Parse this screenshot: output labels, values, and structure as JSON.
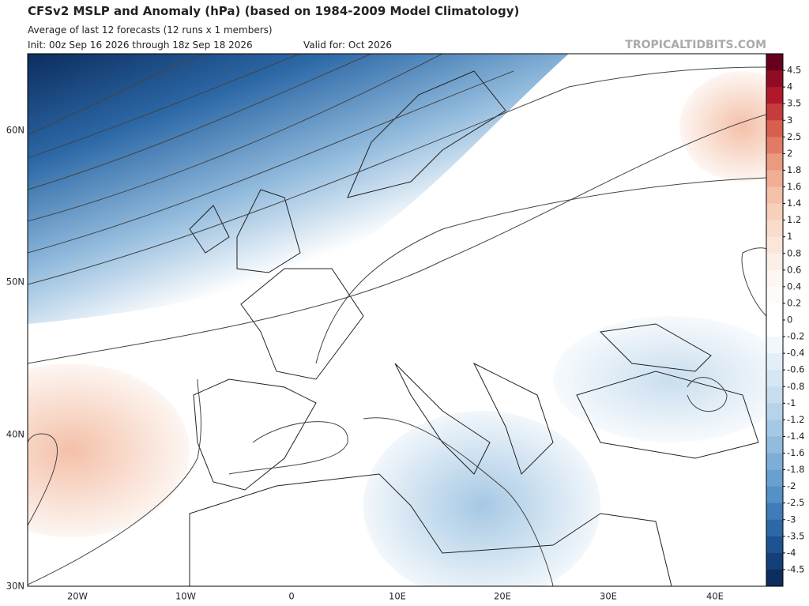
{
  "header": {
    "title": "CFSv2 MSLP and Anomaly (hPa) (based on 1984-2009 Model Climatology)",
    "subtitle": "Average of last 12 forecasts (12 runs x 1 members)",
    "init": "Init: 00z Sep 16 2026 through 18z Sep 18 2026",
    "valid": "Valid for: Oct 2026",
    "watermark": "TROPICALTIDBITS.COM"
  },
  "map": {
    "lat_labels": [
      "60N",
      "50N",
      "40N",
      "30N"
    ],
    "lon_labels": [
      "20W",
      "10W",
      "0",
      "10E",
      "20E",
      "30E",
      "40E"
    ]
  },
  "colorbar": {
    "levels": [
      4.5,
      4,
      3.5,
      3,
      2.5,
      2,
      1.8,
      1.6,
      1.4,
      1.2,
      1,
      0.8,
      0.6,
      0.4,
      0.2,
      0,
      -0.2,
      -0.4,
      -0.6,
      -0.8,
      -1,
      -1.2,
      -1.4,
      -1.6,
      -1.8,
      -2,
      -2.5,
      -3,
      -3.5,
      -4,
      -4.5
    ],
    "colors": [
      "#67001f",
      "#8e0d25",
      "#b2182b",
      "#c43c3c",
      "#d6604d",
      "#e07b66",
      "#e99a80",
      "#f0ae95",
      "#f4c0a8",
      "#f7d0bc",
      "#f9dccb",
      "#fbe6da",
      "#fcefe8",
      "#fdf6f2",
      "#fffafa",
      "#ffffff",
      "#ffffff",
      "#f2f7fb",
      "#e4eef6",
      "#d6e6f2",
      "#c8ddee",
      "#b7d3ea",
      "#a5c8e4",
      "#92bbdd",
      "#7eaed6",
      "#6aa0cf",
      "#5590c6",
      "#3f7cb8",
      "#2c68a6",
      "#1d5390",
      "#143f78",
      "#0c2d5e"
    ]
  }
}
